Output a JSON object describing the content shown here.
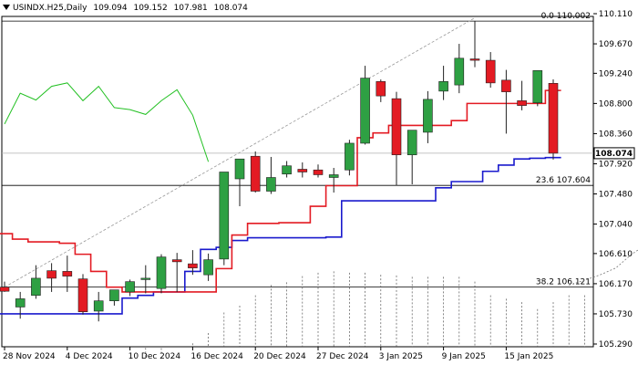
{
  "header": {
    "symbol": "USINDX.H25,Daily",
    "open": "109.094",
    "high": "109.152",
    "low": "107.981",
    "close": "108.074"
  },
  "colors": {
    "bull": "#2ea043",
    "bear": "#e31b23",
    "tenkan": "#e31b23",
    "kijun": "#1a1acd",
    "chikou": "#22c022",
    "price_label_bg": "#ffffff"
  },
  "chart_data": {
    "type": "candlestick",
    "title": "",
    "ylim": [
      105.29,
      110.11
    ],
    "y_ticks": [
      "110.110",
      "109.670",
      "109.240",
      "108.800",
      "108.360",
      "107.920",
      "107.480",
      "107.040",
      "106.610",
      "106.170",
      "105.730",
      "105.290"
    ],
    "x_labels": [
      {
        "index": 0,
        "label": "28 Nov 2024"
      },
      {
        "index": 4,
        "label": "4 Dec 2024"
      },
      {
        "index": 8,
        "label": "10 Dec 2024"
      },
      {
        "index": 12,
        "label": "16 Dec 2024"
      },
      {
        "index": 16,
        "label": "20 Dec 2024"
      },
      {
        "index": 20,
        "label": "27 Dec 2024"
      },
      {
        "index": 24,
        "label": "3 Jan 2025"
      },
      {
        "index": 28,
        "label": "9 Jan 2025"
      },
      {
        "index": 32,
        "label": "15 Jan 2025"
      }
    ],
    "candles": [
      {
        "o": 106.12,
        "h": 106.2,
        "l": 106.05,
        "c": 106.06
      },
      {
        "o": 105.83,
        "h": 106.05,
        "l": 105.66,
        "c": 105.95
      },
      {
        "o": 106.0,
        "h": 106.44,
        "l": 105.95,
        "c": 106.25
      },
      {
        "o": 106.36,
        "h": 106.47,
        "l": 106.05,
        "c": 106.25
      },
      {
        "o": 106.35,
        "h": 106.58,
        "l": 106.05,
        "c": 106.28
      },
      {
        "o": 106.24,
        "h": 106.31,
        "l": 105.72,
        "c": 105.76
      },
      {
        "o": 105.77,
        "h": 106.05,
        "l": 105.62,
        "c": 105.92
      },
      {
        "o": 105.92,
        "h": 106.05,
        "l": 105.85,
        "c": 106.08
      },
      {
        "o": 106.05,
        "h": 106.23,
        "l": 105.99,
        "c": 106.2
      },
      {
        "o": 106.24,
        "h": 106.44,
        "l": 106.03,
        "c": 106.25
      },
      {
        "o": 106.1,
        "h": 106.6,
        "l": 106.03,
        "c": 106.56
      },
      {
        "o": 106.52,
        "h": 106.62,
        "l": 106.05,
        "c": 106.49
      },
      {
        "o": 106.46,
        "h": 106.66,
        "l": 106.3,
        "c": 106.4
      },
      {
        "o": 106.3,
        "h": 106.61,
        "l": 106.21,
        "c": 106.52
      },
      {
        "o": 106.53,
        "h": 107.8,
        "l": 106.44,
        "c": 107.8
      },
      {
        "o": 107.7,
        "h": 107.99,
        "l": 107.3,
        "c": 107.99
      },
      {
        "o": 108.03,
        "h": 108.1,
        "l": 107.5,
        "c": 107.52
      },
      {
        "o": 107.52,
        "h": 108.02,
        "l": 107.48,
        "c": 107.72
      },
      {
        "o": 107.77,
        "h": 107.96,
        "l": 107.72,
        "c": 107.89
      },
      {
        "o": 107.84,
        "h": 107.94,
        "l": 107.72,
        "c": 107.8
      },
      {
        "o": 107.83,
        "h": 107.91,
        "l": 107.72,
        "c": 107.76
      },
      {
        "o": 107.72,
        "h": 107.86,
        "l": 107.5,
        "c": 107.76
      },
      {
        "o": 107.83,
        "h": 108.27,
        "l": 107.75,
        "c": 108.22
      },
      {
        "o": 108.22,
        "h": 109.35,
        "l": 108.2,
        "c": 109.17
      },
      {
        "o": 109.12,
        "h": 109.15,
        "l": 108.82,
        "c": 108.91
      },
      {
        "o": 108.87,
        "h": 108.97,
        "l": 107.6,
        "c": 108.05
      },
      {
        "o": 108.05,
        "h": 108.38,
        "l": 107.62,
        "c": 108.41
      },
      {
        "o": 108.38,
        "h": 108.98,
        "l": 108.22,
        "c": 108.86
      },
      {
        "o": 108.98,
        "h": 109.35,
        "l": 108.85,
        "c": 109.12
      },
      {
        "o": 109.07,
        "h": 109.67,
        "l": 108.95,
        "c": 109.46
      },
      {
        "o": 109.45,
        "h": 110.0,
        "l": 109.33,
        "c": 109.43
      },
      {
        "o": 109.43,
        "h": 109.55,
        "l": 109.03,
        "c": 109.1
      },
      {
        "o": 109.14,
        "h": 109.29,
        "l": 108.36,
        "c": 108.97
      },
      {
        "o": 108.84,
        "h": 109.13,
        "l": 108.7,
        "c": 108.77
      },
      {
        "o": 108.81,
        "h": 109.28,
        "l": 108.76,
        "c": 109.28
      },
      {
        "o": 109.094,
        "h": 109.152,
        "l": 107.981,
        "c": 108.074
      }
    ],
    "tenkan": [
      106.9,
      106.82,
      106.78,
      106.78,
      106.76,
      106.6,
      106.35,
      106.12,
      106.05,
      106.05,
      106.05,
      106.05,
      106.05,
      106.05,
      106.39,
      106.88,
      107.05,
      107.05,
      107.06,
      107.06,
      107.3,
      107.6,
      107.6,
      108.3,
      108.37,
      108.48,
      108.48,
      108.48,
      108.48,
      108.55,
      108.8,
      108.8,
      108.8,
      108.8,
      108.8,
      108.99
    ],
    "kijun": [
      105.73,
      105.73,
      105.73,
      105.73,
      105.73,
      105.73,
      105.73,
      105.73,
      105.96,
      106.0,
      106.05,
      106.05,
      106.35,
      106.67,
      106.7,
      106.8,
      106.84,
      106.84,
      106.84,
      106.84,
      106.84,
      106.85,
      107.38,
      107.38,
      107.38,
      107.38,
      107.38,
      107.38,
      107.57,
      107.66,
      107.66,
      107.81,
      107.9,
      107.99,
      108.0,
      108.01
    ],
    "chikou": [
      108.5,
      108.95,
      108.85,
      109.05,
      109.1,
      108.84,
      109.05,
      108.74,
      108.71,
      108.64,
      108.84,
      109.0,
      108.63,
      107.95
    ],
    "cloud_span_b": [
      105.1,
      105.15,
      105.25,
      105.3,
      105.45,
      105.75,
      105.85,
      106.0,
      106.15,
      106.19,
      106.28,
      106.33,
      106.35,
      106.33,
      106.33,
      106.3,
      106.29,
      106.27,
      106.27,
      106.27,
      106.27,
      106.2,
      106.0,
      105.95,
      105.9,
      105.8,
      105.9,
      106.0,
      106.0,
      106.0,
      106.03,
      106.1
    ],
    "cloud_span_a_tail": [
      106.15,
      106.22,
      106.3,
      106.4,
      106.6,
      106.75
    ],
    "hlines": [
      {
        "price": 110.002,
        "label": "0.0 110.002"
      },
      {
        "price": 107.604,
        "label": "23.6 107.604"
      },
      {
        "price": 106.121,
        "label": "38.2 106.121"
      }
    ],
    "current_price": {
      "price": 108.074,
      "label": "108.074"
    },
    "trendline": {
      "from_index": 0,
      "from_price": 106.12,
      "to_index": 30,
      "to_price": 110.05
    },
    "grid": false
  }
}
